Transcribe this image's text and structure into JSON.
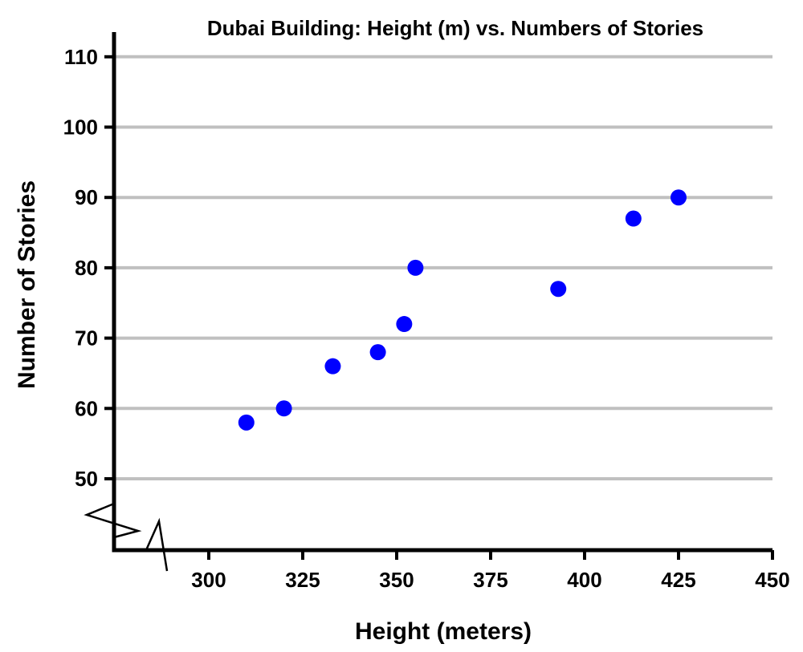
{
  "chart_data": {
    "type": "scatter",
    "title": "Dubai Building: Height (m) vs. Numbers of Stories",
    "xlabel": "Height (meters)",
    "ylabel": "Number of Stories",
    "xlim": [
      275,
      450
    ],
    "ylim": [
      40,
      115
    ],
    "x_ticks": [
      300,
      325,
      350,
      375,
      400,
      425,
      450
    ],
    "y_ticks": [
      50,
      60,
      70,
      80,
      90,
      100,
      110
    ],
    "grid": "horizontal",
    "axis_break": "both",
    "marker_color": "#0000ff",
    "points": [
      {
        "x": 310,
        "y": 58
      },
      {
        "x": 320,
        "y": 60
      },
      {
        "x": 333,
        "y": 66
      },
      {
        "x": 345,
        "y": 68
      },
      {
        "x": 352,
        "y": 72
      },
      {
        "x": 355,
        "y": 80
      },
      {
        "x": 393,
        "y": 77
      },
      {
        "x": 413,
        "y": 87
      },
      {
        "x": 425,
        "y": 90
      }
    ]
  }
}
